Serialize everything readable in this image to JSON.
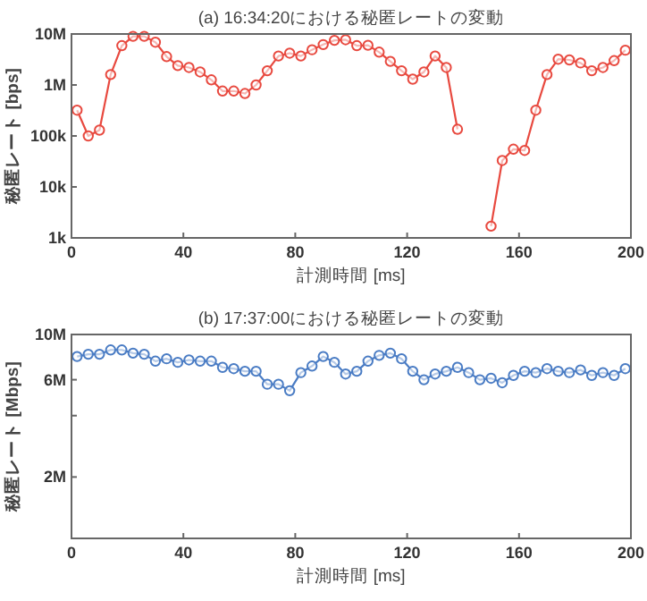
{
  "chart_data": [
    {
      "type": "line",
      "title": "(a) 16:34:20における秘匿レートの変動",
      "xlabel": "計測時間 [ms]",
      "ylabel": "秘匿レート [bps]",
      "log": "y",
      "marker": "circle",
      "grid": false,
      "xlim": [
        0,
        200
      ],
      "xticks": [
        0,
        40,
        80,
        120,
        160,
        200
      ],
      "ylim": [
        1000,
        10000000
      ],
      "yticks": [
        {
          "value": 1000,
          "label": "1k"
        },
        {
          "value": 10000,
          "label": "10k"
        },
        {
          "value": 100000,
          "label": "100k"
        },
        {
          "value": 1000000,
          "label": "1M"
        },
        {
          "value": 10000000,
          "label": "10M"
        }
      ],
      "x": [
        2,
        6,
        10,
        14,
        18,
        22,
        26,
        30,
        34,
        38,
        42,
        46,
        50,
        54,
        58,
        62,
        66,
        70,
        74,
        78,
        82,
        86,
        90,
        94,
        98,
        102,
        106,
        110,
        114,
        118,
        122,
        126,
        130,
        134,
        138,
        142,
        146,
        150,
        154,
        158,
        162,
        166,
        170,
        174,
        178,
        182,
        186,
        190,
        194,
        198
      ],
      "series": [
        {
          "color": "#e8493f",
          "values": [
            320000,
            100000,
            130000,
            1600000,
            5900000,
            9000000,
            9000000,
            6900000,
            3600000,
            2400000,
            2200000,
            1800000,
            1260000,
            760000,
            760000,
            680000,
            1000000,
            1900000,
            3700000,
            4200000,
            3700000,
            4900000,
            6200000,
            7500000,
            7700000,
            5900000,
            6000000,
            4400000,
            2900000,
            1900000,
            1300000,
            1800000,
            3700000,
            2200000,
            135000,
            null,
            null,
            1700,
            33000,
            55000,
            52000,
            320000,
            1600000,
            3200000,
            3100000,
            2700000,
            1900000,
            2200000,
            3000000,
            4800000
          ]
        }
      ]
    },
    {
      "type": "line",
      "title": "(b) 17:37:00における秘匿レートの変動",
      "xlabel": "計測時間 [ms]",
      "ylabel": "秘匿レート [Mbps]",
      "log": "y",
      "marker": "circle",
      "grid": false,
      "xlim": [
        0,
        200
      ],
      "xticks": [
        0,
        40,
        80,
        120,
        160,
        200
      ],
      "ylim": [
        1000000,
        10000000
      ],
      "yticks": [
        {
          "value": 2000000,
          "label": "2M"
        },
        {
          "value": 4000000,
          "label": null
        },
        {
          "value": 6000000,
          "label": "6M"
        },
        {
          "value": 10000000,
          "label": "10M"
        }
      ],
      "x": [
        2,
        6,
        10,
        14,
        18,
        22,
        26,
        30,
        34,
        38,
        42,
        46,
        50,
        54,
        58,
        62,
        66,
        70,
        74,
        78,
        82,
        86,
        90,
        94,
        98,
        102,
        106,
        110,
        114,
        118,
        122,
        126,
        130,
        134,
        138,
        142,
        146,
        150,
        154,
        158,
        162,
        166,
        170,
        174,
        178,
        182,
        186,
        190,
        194,
        198
      ],
      "series": [
        {
          "color": "#4a7cc4",
          "values": [
            7800000,
            8000000,
            8000000,
            8400000,
            8400000,
            8100000,
            8000000,
            7400000,
            7600000,
            7300000,
            7500000,
            7400000,
            7400000,
            6900000,
            6800000,
            6600000,
            6600000,
            5700000,
            5700000,
            5300000,
            6500000,
            7000000,
            7800000,
            7300000,
            6400000,
            6600000,
            7400000,
            7900000,
            8100000,
            7600000,
            6600000,
            6000000,
            6400000,
            6600000,
            6900000,
            6500000,
            6000000,
            6100000,
            5800000,
            6300000,
            6600000,
            6500000,
            6800000,
            6600000,
            6500000,
            6700000,
            6300000,
            6500000,
            6300000,
            6800000
          ]
        }
      ]
    }
  ]
}
